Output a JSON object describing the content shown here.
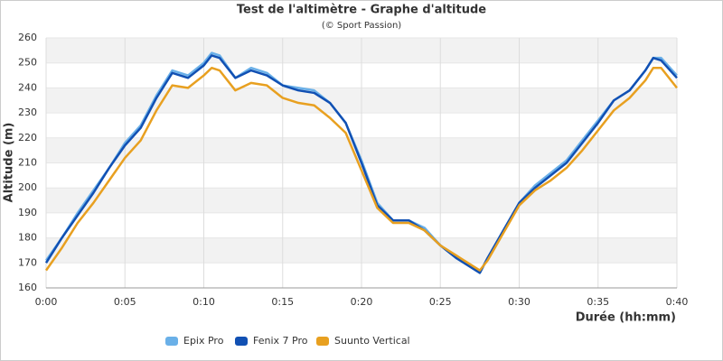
{
  "chart_data": {
    "type": "line",
    "title": "Test de l'altimètre - Graphe d'altitude",
    "subtitle": "(© Sport Passion)",
    "x_label": "Durée (hh:mm)",
    "y_label": "Altitude (m)",
    "x": [
      0,
      1,
      2,
      3,
      4,
      5,
      6,
      7,
      8,
      9,
      10,
      10.5,
      11,
      12,
      13,
      14,
      15,
      16,
      17,
      18,
      19,
      20,
      21,
      22,
      23,
      24,
      25,
      26,
      27,
      27.5,
      28,
      29,
      30,
      31,
      32,
      33,
      34,
      35,
      36,
      37,
      38,
      38.5,
      39,
      40
    ],
    "series": [
      {
        "name": "Epix Pro",
        "color": "#6ab0e8",
        "values": [
          171,
          180,
          190,
          199,
          208,
          218,
          225,
          237,
          247,
          245,
          250,
          254,
          253,
          244,
          248,
          246,
          241,
          240,
          239,
          234,
          226,
          211,
          194,
          187,
          187,
          184,
          177,
          172,
          168,
          166,
          172,
          183,
          194,
          201,
          206,
          211,
          219,
          227,
          235,
          239,
          247,
          252,
          252,
          245
        ]
      },
      {
        "name": "Fenix 7 Pro",
        "color": "#1150b3",
        "values": [
          170,
          180,
          189,
          198,
          208,
          217,
          224,
          236,
          246,
          244,
          249,
          253,
          252,
          244,
          247,
          245,
          241,
          239,
          238,
          234,
          226,
          210,
          193,
          187,
          187,
          183,
          177,
          172,
          168,
          166,
          172,
          183,
          194,
          200,
          205,
          210,
          218,
          226,
          235,
          239,
          247,
          252,
          251,
          244
        ]
      },
      {
        "name": "Suunto Vertical",
        "color": "#e8a020",
        "values": [
          167,
          176,
          186,
          194,
          203,
          212,
          219,
          231,
          241,
          240,
          245,
          248,
          247,
          239,
          242,
          241,
          236,
          234,
          233,
          228,
          222,
          207,
          192,
          186,
          186,
          183,
          177,
          173,
          169,
          167,
          171,
          182,
          193,
          199,
          203,
          208,
          215,
          223,
          231,
          236,
          243,
          248,
          248,
          240
        ]
      }
    ],
    "xlim": [
      0,
      40
    ],
    "xticks": [
      {
        "value": 0,
        "label": "0:00"
      },
      {
        "value": 5,
        "label": "0:05"
      },
      {
        "value": 10,
        "label": "0:10"
      },
      {
        "value": 15,
        "label": "0:15"
      },
      {
        "value": 20,
        "label": "0:20"
      },
      {
        "value": 25,
        "label": "0:25"
      },
      {
        "value": 30,
        "label": "0:30"
      },
      {
        "value": 35,
        "label": "0:35"
      },
      {
        "value": 40,
        "label": "0:40"
      }
    ],
    "ylim": [
      160,
      260
    ],
    "yticks": [
      160,
      170,
      180,
      190,
      200,
      210,
      220,
      230,
      240,
      250,
      260
    ],
    "grid": true,
    "legend": "bottom"
  }
}
